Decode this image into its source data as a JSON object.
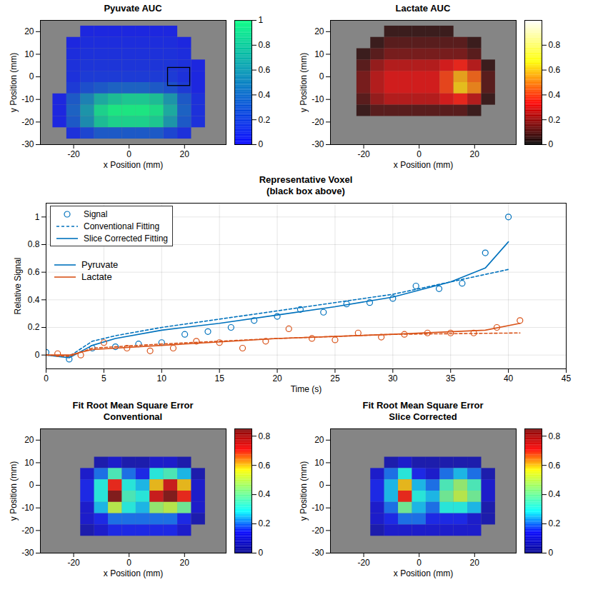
{
  "chart_data": [
    {
      "type": "heatmap",
      "title": "Pyuvate AUC",
      "x_label": "x Position (mm)",
      "y_label": "y Position (mm)",
      "xlim": [
        -32,
        35
      ],
      "xticks": [
        -20,
        0,
        20
      ],
      "ylim": [
        -30,
        25
      ],
      "yticks": [
        -30,
        -20,
        -10,
        0,
        10,
        20
      ],
      "colors": [
        "#0000ff",
        "#00ff80"
      ],
      "colorbar": {
        "range": [
          0,
          1
        ],
        "ticks": [
          0,
          0.2,
          0.4,
          0.6,
          0.8,
          1
        ]
      },
      "box": {
        "x": [
          14,
          22
        ],
        "y": [
          -4,
          4
        ]
      },
      "cells": {
        "x": [
          -25,
          -20,
          -15,
          -10,
          -5,
          0,
          5,
          10,
          15,
          20,
          25
        ],
        "y": [
          20,
          15,
          10,
          5,
          0,
          -5,
          -10,
          -15,
          -20,
          -25
        ],
        "values": [
          [
            0,
            0,
            0.05,
            0.05,
            0.05,
            0.05,
            0.05,
            0.05,
            0.05,
            0,
            0
          ],
          [
            0,
            0.05,
            0.08,
            0.08,
            0.08,
            0.08,
            0.08,
            0.08,
            0.08,
            0.05,
            0
          ],
          [
            0,
            0.08,
            0.1,
            0.1,
            0.1,
            0.1,
            0.1,
            0.1,
            0.1,
            0.08,
            0
          ],
          [
            0,
            0.1,
            0.12,
            0.12,
            0.12,
            0.12,
            0.12,
            0.12,
            0.12,
            0.1,
            0.05
          ],
          [
            0,
            0.1,
            0.15,
            0.15,
            0.15,
            0.15,
            0.15,
            0.15,
            0.15,
            0.1,
            0.05
          ],
          [
            0,
            0.15,
            0.25,
            0.3,
            0.35,
            0.35,
            0.35,
            0.3,
            0.25,
            0.15,
            0.05
          ],
          [
            0.05,
            0.3,
            0.5,
            0.7,
            0.8,
            0.85,
            0.85,
            0.8,
            0.6,
            0.3,
            0.1
          ],
          [
            0.05,
            0.35,
            0.6,
            0.9,
            1,
            1,
            1,
            0.95,
            0.7,
            0.35,
            0.1
          ],
          [
            0.05,
            0.3,
            0.55,
            0.8,
            0.9,
            0.9,
            0.9,
            0.85,
            0.6,
            0.3,
            0.1
          ],
          [
            0,
            0.1,
            0.2,
            0.3,
            0.3,
            0.3,
            0.3,
            0.3,
            0.2,
            0.1,
            0
          ]
        ]
      }
    },
    {
      "type": "heatmap",
      "title": "Lactate AUC",
      "x_label": "x Position (mm)",
      "y_label": "y Position (mm)",
      "xlim": [
        -32,
        35
      ],
      "xticks": [
        -20,
        0,
        20
      ],
      "ylim": [
        -30,
        25
      ],
      "yticks": [
        -30,
        -20,
        -10,
        0,
        10,
        20
      ],
      "colors": [
        "#000000",
        "#ff0000",
        "#ffff00",
        "#ffffff"
      ],
      "colorbar": {
        "range": [
          0,
          1
        ],
        "ticks": [
          0,
          0.2,
          0.4,
          0.6,
          0.8
        ]
      },
      "cells": {
        "x": [
          -25,
          -20,
          -15,
          -10,
          -5,
          0,
          5,
          10,
          15,
          20,
          25
        ],
        "y": [
          20,
          15,
          10,
          5,
          0,
          -5,
          -10,
          -15,
          -20,
          -25
        ],
        "values": [
          [
            0,
            0,
            0,
            0.05,
            0.05,
            0.05,
            0.05,
            0.05,
            0,
            0,
            0
          ],
          [
            0,
            0,
            0.05,
            0.1,
            0.1,
            0.1,
            0.1,
            0.1,
            0.1,
            0.05,
            0
          ],
          [
            0,
            0.05,
            0.1,
            0.15,
            0.15,
            0.15,
            0.15,
            0.15,
            0.15,
            0.1,
            0
          ],
          [
            0,
            0.1,
            0.2,
            0.25,
            0.25,
            0.25,
            0.25,
            0.3,
            0.35,
            0.25,
            0.05
          ],
          [
            0,
            0.15,
            0.25,
            0.3,
            0.3,
            0.3,
            0.3,
            0.4,
            0.55,
            0.45,
            0.1
          ],
          [
            0,
            0.15,
            0.25,
            0.3,
            0.3,
            0.3,
            0.3,
            0.4,
            0.6,
            0.5,
            0.1
          ],
          [
            0,
            0.1,
            0.2,
            0.25,
            0.25,
            0.25,
            0.25,
            0.3,
            0.35,
            0.25,
            0.05
          ],
          [
            0,
            0.05,
            0.1,
            0.1,
            0.1,
            0.1,
            0.1,
            0.1,
            0.1,
            0.05,
            0
          ],
          [
            0,
            0,
            0,
            0,
            0,
            0,
            0,
            0,
            0,
            0,
            0
          ],
          [
            0,
            0,
            0,
            0,
            0,
            0,
            0,
            0,
            0,
            0,
            0
          ]
        ]
      }
    },
    {
      "type": "line",
      "title": "Representative Voxel\n(black box above)",
      "x_label": "Time (s)",
      "y_label": "Relative Signal",
      "xlim": [
        0,
        45
      ],
      "xticks": [
        0,
        5,
        10,
        15,
        20,
        25,
        30,
        35,
        40,
        45
      ],
      "ylim": [
        -0.1,
        1.1
      ],
      "yticks": [
        0,
        0.2,
        0.4,
        0.6,
        0.8,
        1
      ],
      "grid": true,
      "legend": "top-left",
      "groups": [
        {
          "name": "Pyruvate",
          "color": "#0072bd",
          "series": [
            {
              "name": "Signal",
              "type": "scatter",
              "marker": "circle",
              "x": [
                0,
                2,
                4,
                6,
                8,
                10,
                12,
                14,
                16,
                18,
                20,
                22,
                24,
                26,
                28,
                30,
                32,
                34,
                36,
                38,
                40
              ],
              "values": [
                0.02,
                -0.03,
                0.05,
                0.06,
                0.08,
                0.09,
                0.15,
                0.17,
                0.2,
                0.25,
                0.28,
                0.33,
                0.31,
                0.37,
                0.38,
                0.41,
                0.5,
                0.48,
                0.52,
                0.74,
                1.0
              ]
            },
            {
              "name": "Conventional Fitting",
              "type": "line",
              "line_style": "dashed",
              "x": [
                0,
                2,
                4,
                6,
                10,
                15,
                20,
                25,
                30,
                35,
                40
              ],
              "values": [
                0,
                -0.01,
                0.1,
                0.14,
                0.2,
                0.26,
                0.32,
                0.38,
                0.44,
                0.53,
                0.62
              ]
            },
            {
              "name": "Slice Corrected Fitting",
              "type": "line",
              "line_style": "solid",
              "x": [
                0,
                2,
                4,
                6,
                10,
                15,
                20,
                25,
                30,
                35,
                38,
                40
              ],
              "values": [
                0,
                -0.02,
                0.07,
                0.12,
                0.18,
                0.23,
                0.29,
                0.35,
                0.42,
                0.53,
                0.63,
                0.82
              ]
            }
          ]
        },
        {
          "name": "Lactate",
          "color": "#d95319",
          "series": [
            {
              "name": "Signal",
              "type": "scatter",
              "marker": "circle",
              "x": [
                1,
                3,
                5,
                7,
                9,
                11,
                13,
                15,
                17,
                19,
                21,
                23,
                25,
                27,
                29,
                31,
                33,
                35,
                37,
                39,
                41
              ],
              "values": [
                0.01,
                0.0,
                0.09,
                0.05,
                0.03,
                0.05,
                0.1,
                0.09,
                0.05,
                0.1,
                0.19,
                0.12,
                0.11,
                0.16,
                0.13,
                0.15,
                0.16,
                0.16,
                0.16,
                0.2,
                0.25
              ]
            },
            {
              "name": "Conventional Fitting",
              "type": "line",
              "line_style": "dashed",
              "x": [
                0,
                2,
                4,
                10,
                20,
                30,
                41
              ],
              "values": [
                0,
                -0.01,
                0.05,
                0.08,
                0.12,
                0.15,
                0.16
              ]
            },
            {
              "name": "Slice Corrected Fitting",
              "type": "line",
              "line_style": "solid",
              "x": [
                0,
                2,
                4,
                10,
                20,
                30,
                38,
                41
              ],
              "values": [
                0,
                0,
                0.04,
                0.07,
                0.12,
                0.15,
                0.18,
                0.23
              ]
            }
          ]
        }
      ]
    },
    {
      "type": "heatmap",
      "title": "Fit Root Mean Square Error\nConventional",
      "x_label": "x Position (mm)",
      "y_label": "y Position (mm)",
      "xlim": [
        -32,
        35
      ],
      "xticks": [
        -20,
        0,
        20
      ],
      "ylim": [
        -30,
        25
      ],
      "yticks": [
        -30,
        -20,
        -10,
        0,
        10,
        20
      ],
      "colors": [
        "#00008f",
        "#0000ff",
        "#00ffff",
        "#80ff80",
        "#ffff00",
        "#ff0000",
        "#800000"
      ],
      "colorbar": {
        "range": [
          0,
          0.85
        ],
        "ticks": [
          0,
          0.2,
          0.4,
          0.6,
          0.8
        ]
      },
      "cells": {
        "x": [
          -25,
          -20,
          -15,
          -10,
          -5,
          0,
          5,
          10,
          15,
          20,
          25
        ],
        "y": [
          20,
          15,
          10,
          5,
          0,
          -5,
          -10,
          -15,
          -20,
          -25
        ],
        "values": [
          [
            0,
            0,
            0,
            0,
            0,
            0,
            0,
            0,
            0,
            0,
            0
          ],
          [
            0,
            0,
            0,
            0,
            0,
            0,
            0,
            0,
            0,
            0,
            0
          ],
          [
            0,
            0,
            0,
            0.05,
            0.1,
            0.05,
            0.05,
            0.1,
            0.1,
            0.05,
            0
          ],
          [
            0,
            0,
            0.1,
            0.2,
            0.35,
            0.2,
            0.15,
            0.3,
            0.35,
            0.25,
            0.05
          ],
          [
            0,
            0,
            0.15,
            0.3,
            0.7,
            0.3,
            0.25,
            0.6,
            0.75,
            0.6,
            0.1
          ],
          [
            0,
            0,
            0.15,
            0.3,
            0.85,
            0.35,
            0.3,
            0.75,
            0.85,
            0.7,
            0.1
          ],
          [
            0,
            0,
            0.1,
            0.25,
            0.5,
            0.3,
            0.25,
            0.45,
            0.5,
            0.4,
            0.1
          ],
          [
            0,
            0,
            0.1,
            0.15,
            0.2,
            0.2,
            0.2,
            0.2,
            0.2,
            0.15,
            0.05
          ],
          [
            0,
            0,
            0.05,
            0.1,
            0.15,
            0.15,
            0.15,
            0.15,
            0.15,
            0.1,
            0
          ],
          [
            0,
            0,
            0,
            0,
            0,
            0,
            0,
            0,
            0,
            0,
            0
          ]
        ]
      }
    },
    {
      "type": "heatmap",
      "title": "Fit Root Mean Square Error\nSlice Corrected",
      "x_label": "x Position (mm)",
      "y_label": "y Position (mm)",
      "xlim": [
        -32,
        35
      ],
      "xticks": [
        -20,
        0,
        20
      ],
      "ylim": [
        -30,
        25
      ],
      "yticks": [
        -30,
        -20,
        -10,
        0,
        10,
        20
      ],
      "colors": [
        "#00008f",
        "#0000ff",
        "#00ffff",
        "#80ff80",
        "#ffff00",
        "#ff0000",
        "#800000"
      ],
      "colorbar": {
        "range": [
          0,
          0.85
        ],
        "ticks": [
          0,
          0.2,
          0.4,
          0.6,
          0.8
        ]
      },
      "cells": {
        "x": [
          -25,
          -20,
          -15,
          -10,
          -5,
          0,
          5,
          10,
          15,
          20,
          25
        ],
        "y": [
          20,
          15,
          10,
          5,
          0,
          -5,
          -10,
          -15,
          -20,
          -25
        ],
        "values": [
          [
            0,
            0,
            0,
            0,
            0,
            0,
            0,
            0,
            0,
            0,
            0
          ],
          [
            0,
            0,
            0,
            0,
            0,
            0,
            0,
            0,
            0,
            0,
            0
          ],
          [
            0,
            0,
            0,
            0.05,
            0.1,
            0.05,
            0.05,
            0.05,
            0.05,
            0.05,
            0
          ],
          [
            0,
            0,
            0.1,
            0.2,
            0.3,
            0.15,
            0.1,
            0.2,
            0.25,
            0.2,
            0.05
          ],
          [
            0,
            0,
            0.15,
            0.25,
            0.6,
            0.25,
            0.2,
            0.35,
            0.45,
            0.35,
            0.1
          ],
          [
            0,
            0,
            0.15,
            0.25,
            0.7,
            0.3,
            0.25,
            0.4,
            0.5,
            0.4,
            0.1
          ],
          [
            0,
            0,
            0.1,
            0.2,
            0.4,
            0.25,
            0.2,
            0.3,
            0.3,
            0.25,
            0.05
          ],
          [
            0,
            0,
            0.1,
            0.15,
            0.2,
            0.2,
            0.15,
            0.15,
            0.15,
            0.1,
            0.05
          ],
          [
            0,
            0,
            0.05,
            0.1,
            0.1,
            0.1,
            0.1,
            0.1,
            0.1,
            0.1,
            0
          ],
          [
            0,
            0,
            0,
            0,
            0,
            0,
            0,
            0,
            0,
            0,
            0
          ]
        ]
      }
    }
  ]
}
